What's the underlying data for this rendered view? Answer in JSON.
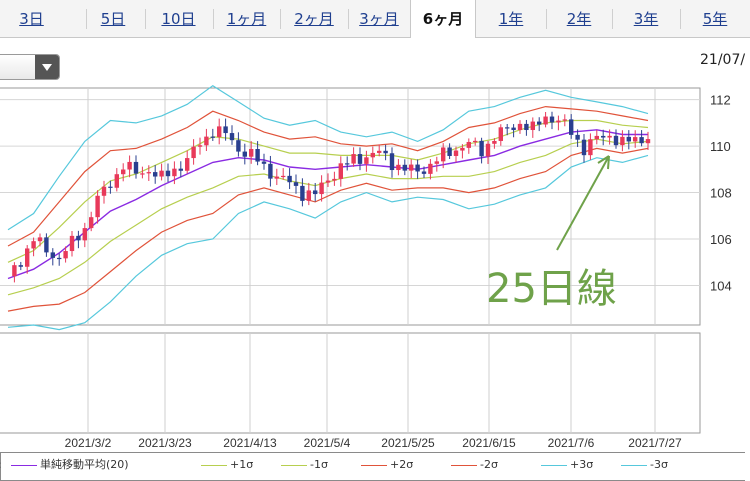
{
  "tabs": [
    {
      "label": "3日",
      "active": false
    },
    {
      "label": "5日",
      "active": false
    },
    {
      "label": "10日",
      "active": false
    },
    {
      "label": "1ヶ月",
      "active": false
    },
    {
      "label": "2ヶ月",
      "active": false
    },
    {
      "label": "3ヶ月",
      "active": false
    },
    {
      "label": "6ヶ月",
      "active": true
    },
    {
      "label": "1年",
      "active": false
    },
    {
      "label": "2年",
      "active": false
    },
    {
      "label": "3年",
      "active": false
    },
    {
      "label": "5年",
      "active": false
    }
  ],
  "date_label": "21/07/",
  "annotation": "25日線",
  "legend": [
    {
      "label": "単純移動平均(20)",
      "color": "#8a2be2"
    },
    {
      "label": "+1σ",
      "color": "#b7cf4f"
    },
    {
      "label": "-1σ",
      "color": "#b7cf4f"
    },
    {
      "label": "+2σ",
      "color": "#e0533a"
    },
    {
      "label": "-2σ",
      "color": "#e0533a"
    },
    {
      "label": "+3σ",
      "color": "#56c8dc"
    },
    {
      "label": "-3σ",
      "color": "#56c8dc"
    }
  ],
  "colors": {
    "up": "#e8395a",
    "down": "#2a3f8f",
    "annotation": "#6fa24a"
  },
  "chart_data": {
    "type": "candlestick",
    "ylim": [
      102.3,
      112.5
    ],
    "yticks": [
      104,
      106,
      108,
      110,
      112
    ],
    "xticks": [
      "2021/3/2",
      "2021/3/23",
      "2021/4/13",
      "2021/5/4",
      "2021/5/25",
      "2021/6/15",
      "2021/7/6",
      "2021/7/27"
    ],
    "series": [
      {
        "name": "単純移動平均(20)",
        "points": [
          [
            0,
            104.3
          ],
          [
            4,
            104.7
          ],
          [
            8,
            105.4
          ],
          [
            12,
            106.3
          ],
          [
            16,
            107.2
          ],
          [
            20,
            107.7
          ],
          [
            24,
            108.3
          ],
          [
            28,
            108.8
          ],
          [
            32,
            109.3
          ],
          [
            36,
            109.5
          ],
          [
            40,
            109.4
          ],
          [
            44,
            109.1
          ],
          [
            48,
            109.0
          ],
          [
            52,
            109.1
          ],
          [
            56,
            109.2
          ],
          [
            60,
            109.1
          ],
          [
            64,
            109.0
          ],
          [
            68,
            109.2
          ],
          [
            72,
            109.4
          ],
          [
            76,
            109.6
          ],
          [
            80,
            110.0
          ],
          [
            84,
            110.3
          ],
          [
            88,
            110.6
          ],
          [
            92,
            110.7
          ],
          [
            96,
            110.5
          ],
          [
            100,
            110.5
          ]
        ]
      },
      {
        "name": "+1σ",
        "points": [
          [
            0,
            105.0
          ],
          [
            4,
            105.5
          ],
          [
            8,
            106.5
          ],
          [
            12,
            107.6
          ],
          [
            16,
            108.5
          ],
          [
            20,
            108.8
          ],
          [
            24,
            109.3
          ],
          [
            28,
            109.8
          ],
          [
            32,
            110.4
          ],
          [
            36,
            110.3
          ],
          [
            40,
            110.0
          ],
          [
            44,
            109.7
          ],
          [
            48,
            109.7
          ],
          [
            52,
            109.6
          ],
          [
            56,
            109.6
          ],
          [
            60,
            109.6
          ],
          [
            64,
            109.4
          ],
          [
            68,
            109.7
          ],
          [
            72,
            110.1
          ],
          [
            76,
            110.3
          ],
          [
            80,
            110.7
          ],
          [
            84,
            111.0
          ],
          [
            88,
            111.1
          ],
          [
            92,
            111.1
          ],
          [
            96,
            110.9
          ],
          [
            100,
            110.8
          ]
        ]
      },
      {
        "name": "-1σ",
        "points": [
          [
            0,
            103.6
          ],
          [
            4,
            103.9
          ],
          [
            8,
            104.3
          ],
          [
            12,
            105.0
          ],
          [
            16,
            105.9
          ],
          [
            20,
            106.6
          ],
          [
            24,
            107.3
          ],
          [
            28,
            107.8
          ],
          [
            32,
            108.2
          ],
          [
            36,
            108.7
          ],
          [
            40,
            108.8
          ],
          [
            44,
            108.5
          ],
          [
            48,
            108.3
          ],
          [
            52,
            108.6
          ],
          [
            56,
            108.8
          ],
          [
            60,
            108.6
          ],
          [
            64,
            108.6
          ],
          [
            68,
            108.7
          ],
          [
            72,
            108.7
          ],
          [
            76,
            108.9
          ],
          [
            80,
            109.3
          ],
          [
            84,
            109.6
          ],
          [
            88,
            110.1
          ],
          [
            92,
            110.3
          ],
          [
            96,
            110.1
          ],
          [
            100,
            110.2
          ]
        ]
      },
      {
        "name": "+2σ",
        "points": [
          [
            0,
            105.7
          ],
          [
            4,
            106.3
          ],
          [
            8,
            107.6
          ],
          [
            12,
            108.9
          ],
          [
            16,
            109.8
          ],
          [
            20,
            109.9
          ],
          [
            24,
            110.3
          ],
          [
            28,
            110.8
          ],
          [
            32,
            111.5
          ],
          [
            36,
            111.1
          ],
          [
            40,
            110.6
          ],
          [
            44,
            110.3
          ],
          [
            48,
            110.4
          ],
          [
            52,
            110.1
          ],
          [
            56,
            110.0
          ],
          [
            60,
            110.1
          ],
          [
            64,
            109.8
          ],
          [
            68,
            110.2
          ],
          [
            72,
            110.8
          ],
          [
            76,
            111.0
          ],
          [
            80,
            111.4
          ],
          [
            84,
            111.7
          ],
          [
            88,
            111.6
          ],
          [
            92,
            111.5
          ],
          [
            96,
            111.3
          ],
          [
            100,
            111.1
          ]
        ]
      },
      {
        "name": "-2σ",
        "points": [
          [
            0,
            102.9
          ],
          [
            4,
            103.1
          ],
          [
            8,
            103.2
          ],
          [
            12,
            103.7
          ],
          [
            16,
            104.6
          ],
          [
            20,
            105.5
          ],
          [
            24,
            106.3
          ],
          [
            28,
            106.8
          ],
          [
            32,
            107.1
          ],
          [
            36,
            107.9
          ],
          [
            40,
            108.2
          ],
          [
            44,
            107.9
          ],
          [
            48,
            107.6
          ],
          [
            52,
            108.1
          ],
          [
            56,
            108.4
          ],
          [
            60,
            108.1
          ],
          [
            64,
            108.2
          ],
          [
            68,
            108.2
          ],
          [
            72,
            108.0
          ],
          [
            76,
            108.2
          ],
          [
            80,
            108.6
          ],
          [
            84,
            108.9
          ],
          [
            88,
            109.6
          ],
          [
            92,
            109.9
          ],
          [
            96,
            109.7
          ],
          [
            100,
            109.9
          ]
        ]
      },
      {
        "name": "+3σ",
        "points": [
          [
            0,
            106.4
          ],
          [
            4,
            107.1
          ],
          [
            8,
            108.7
          ],
          [
            12,
            110.2
          ],
          [
            16,
            111.1
          ],
          [
            20,
            111.0
          ],
          [
            24,
            111.3
          ],
          [
            28,
            111.8
          ],
          [
            32,
            112.6
          ],
          [
            36,
            111.9
          ],
          [
            40,
            111.2
          ],
          [
            44,
            110.9
          ],
          [
            48,
            111.1
          ],
          [
            52,
            110.6
          ],
          [
            56,
            110.4
          ],
          [
            60,
            110.6
          ],
          [
            64,
            110.2
          ],
          [
            68,
            110.7
          ],
          [
            72,
            111.5
          ],
          [
            76,
            111.7
          ],
          [
            80,
            112.1
          ],
          [
            84,
            112.4
          ],
          [
            88,
            112.1
          ],
          [
            92,
            111.9
          ],
          [
            96,
            111.7
          ],
          [
            100,
            111.4
          ]
        ]
      },
      {
        "name": "-3σ",
        "points": [
          [
            0,
            102.2
          ],
          [
            4,
            102.3
          ],
          [
            8,
            102.1
          ],
          [
            12,
            102.4
          ],
          [
            16,
            103.3
          ],
          [
            20,
            104.4
          ],
          [
            24,
            105.3
          ],
          [
            28,
            105.8
          ],
          [
            32,
            106.0
          ],
          [
            36,
            107.1
          ],
          [
            40,
            107.6
          ],
          [
            44,
            107.3
          ],
          [
            48,
            106.9
          ],
          [
            52,
            107.6
          ],
          [
            56,
            108.0
          ],
          [
            60,
            107.6
          ],
          [
            64,
            107.8
          ],
          [
            68,
            107.7
          ],
          [
            72,
            107.3
          ],
          [
            76,
            107.5
          ],
          [
            80,
            107.9
          ],
          [
            84,
            108.2
          ],
          [
            88,
            109.1
          ],
          [
            92,
            109.5
          ],
          [
            96,
            109.3
          ],
          [
            100,
            109.6
          ]
        ]
      }
    ],
    "close_path": [
      [
        0,
        104.4
      ],
      [
        2,
        105.1
      ],
      [
        4,
        106.0
      ],
      [
        6,
        105.5
      ],
      [
        8,
        105.2
      ],
      [
        10,
        105.8
      ],
      [
        12,
        106.5
      ],
      [
        14,
        107.7
      ],
      [
        16,
        108.4
      ],
      [
        18,
        109.2
      ],
      [
        20,
        108.8
      ],
      [
        22,
        109.0
      ],
      [
        24,
        108.6
      ],
      [
        26,
        109.0
      ],
      [
        28,
        109.4
      ],
      [
        30,
        110.1
      ],
      [
        32,
        110.7
      ],
      [
        34,
        110.5
      ],
      [
        36,
        109.9
      ],
      [
        38,
        109.6
      ],
      [
        40,
        109.1
      ],
      [
        42,
        108.7
      ],
      [
        44,
        108.4
      ],
      [
        46,
        108.0
      ],
      [
        48,
        107.9
      ],
      [
        50,
        108.6
      ],
      [
        52,
        109.1
      ],
      [
        54,
        109.4
      ],
      [
        56,
        109.6
      ],
      [
        58,
        109.7
      ],
      [
        60,
        109.3
      ],
      [
        62,
        109.0
      ],
      [
        64,
        108.9
      ],
      [
        66,
        109.2
      ],
      [
        68,
        109.6
      ],
      [
        70,
        109.9
      ],
      [
        72,
        110.1
      ],
      [
        74,
        109.8
      ],
      [
        76,
        110.4
      ],
      [
        78,
        110.7
      ],
      [
        80,
        111.0
      ],
      [
        82,
        110.7
      ],
      [
        84,
        111.3
      ],
      [
        86,
        111.1
      ],
      [
        88,
        110.6
      ],
      [
        90,
        109.9
      ],
      [
        92,
        110.3
      ],
      [
        94,
        110.5
      ],
      [
        96,
        110.1
      ],
      [
        98,
        110.3
      ],
      [
        100,
        110.4
      ]
    ]
  }
}
